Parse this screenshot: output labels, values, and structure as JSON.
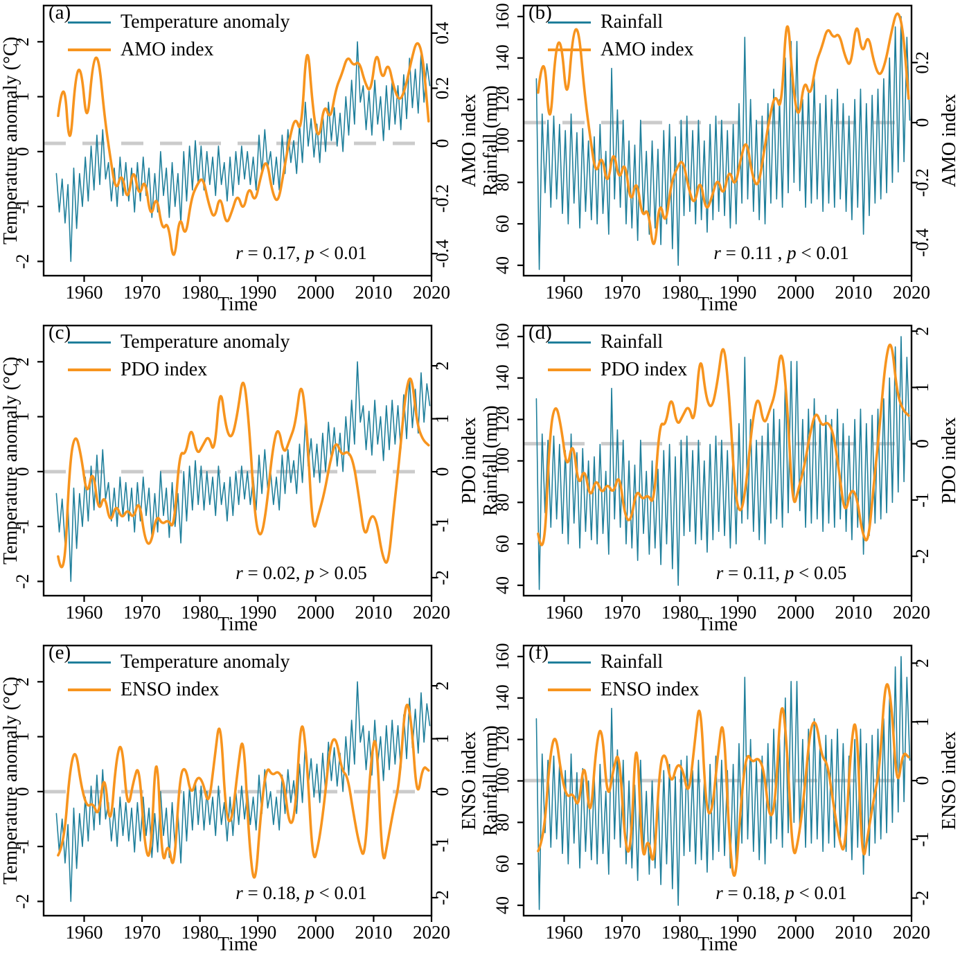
{
  "colors": {
    "blue": "#1F7F9B",
    "orange": "#F7941E",
    "dash_gray": "#CBCBCB",
    "frame": "#000000"
  },
  "series_data": {
    "temperature_anomaly": {
      "unit": "°C",
      "start_year": 1955,
      "resolution": "annual high/low envelope of monthly series",
      "annual_hi": [
        -0.4,
        -0.5,
        -0.6,
        -0.3,
        -0.4,
        -0.1,
        0.1,
        0.3,
        0.4,
        -0.2,
        -0.3,
        -0.1,
        -0.2,
        -0.3,
        -0.2,
        -0.1,
        -0.3,
        -0.4,
        0.0,
        -0.3,
        -0.2,
        -0.4,
        0.0,
        0.1,
        0.2,
        0.1,
        0.0,
        -0.1,
        0.1,
        -0.2,
        -0.1,
        0.0,
        0.1,
        0.0,
        -0.1,
        0.3,
        0.4,
        0.0,
        -0.1,
        0.3,
        0.4,
        0.2,
        0.5,
        0.9,
        0.6,
        0.5,
        0.7,
        0.9,
        0.8,
        0.7,
        1.0,
        1.3,
        2.0,
        1.2,
        1.1,
        1.3,
        1.0,
        1.2,
        1.3,
        1.2,
        1.4,
        1.7,
        1.5,
        1.8,
        1.6
      ],
      "annual_lo": [
        -1.1,
        -1.3,
        -2.0,
        -1.4,
        -1.0,
        -0.9,
        -0.7,
        -0.6,
        -0.5,
        -0.9,
        -1.0,
        -0.8,
        -0.9,
        -1.1,
        -0.9,
        -0.8,
        -1.2,
        -1.1,
        -0.8,
        -1.2,
        -1.0,
        -1.3,
        -0.9,
        -0.7,
        -0.6,
        -0.7,
        -0.6,
        -0.8,
        -0.6,
        -0.9,
        -0.8,
        -0.6,
        -0.5,
        -0.6,
        -0.7,
        -0.4,
        -0.3,
        -0.6,
        -0.7,
        -0.4,
        -0.2,
        -0.4,
        -0.2,
        0.1,
        -0.1,
        -0.2,
        0.0,
        0.2,
        0.1,
        0.0,
        0.3,
        0.5,
        0.9,
        0.4,
        0.3,
        0.5,
        0.2,
        0.4,
        0.5,
        0.4,
        0.6,
        0.8,
        0.7,
        0.9,
        1.2
      ]
    },
    "rainfall": {
      "unit": "mm",
      "start_year": 1955,
      "resolution": "annual high/low envelope of monthly series",
      "annual_hi": [
        130,
        113,
        110,
        112,
        108,
        105,
        113,
        104,
        106,
        100,
        102,
        108,
        95,
        135,
        115,
        110,
        100,
        98,
        110,
        95,
        100,
        96,
        105,
        108,
        102,
        110,
        112,
        105,
        110,
        100,
        108,
        112,
        110,
        105,
        108,
        118,
        150,
        120,
        110,
        112,
        118,
        125,
        120,
        140,
        148,
        148,
        120,
        125,
        130,
        118,
        122,
        120,
        125,
        118,
        112,
        120,
        125,
        118,
        122,
        125,
        130,
        140,
        155,
        160,
        150
      ],
      "annual_lo": [
        38,
        75,
        68,
        72,
        65,
        60,
        70,
        58,
        66,
        62,
        60,
        65,
        55,
        72,
        68,
        60,
        58,
        52,
        65,
        55,
        58,
        50,
        60,
        48,
        40,
        64,
        66,
        60,
        62,
        56,
        62,
        66,
        64,
        58,
        60,
        70,
        72,
        66,
        62,
        60,
        70,
        72,
        68,
        75,
        80,
        76,
        68,
        70,
        72,
        66,
        70,
        68,
        72,
        66,
        62,
        68,
        55,
        64,
        70,
        72,
        75,
        80,
        85,
        90,
        110
      ]
    },
    "amo": {
      "start_year": 1955,
      "resolution": "annual",
      "annual": [
        0.1,
        0.27,
        -0.05,
        0.25,
        0.28,
        0.05,
        0.3,
        0.32,
        0.1,
        -0.05,
        -0.18,
        -0.1,
        -0.22,
        -0.08,
        -0.2,
        -0.12,
        -0.28,
        -0.18,
        -0.32,
        -0.28,
        -0.45,
        -0.25,
        -0.35,
        -0.2,
        -0.15,
        -0.12,
        -0.22,
        -0.28,
        -0.18,
        -0.3,
        -0.25,
        -0.18,
        -0.25,
        -0.15,
        -0.22,
        -0.12,
        -0.05,
        -0.18,
        -0.22,
        -0.1,
        0.02,
        0.1,
        0.03,
        0.4,
        0.12,
        0.0,
        0.15,
        0.08,
        0.2,
        0.25,
        0.32,
        0.28,
        0.3,
        0.22,
        0.18,
        0.35,
        0.22,
        0.3,
        0.2,
        0.15,
        0.2,
        0.3,
        0.38,
        0.32,
        0.08
      ]
    },
    "pdo": {
      "start_year": 1955,
      "resolution": "annual",
      "annual": [
        -1.6,
        -2.2,
        0.2,
        0.75,
        0.3,
        -0.5,
        0.1,
        -0.8,
        -0.4,
        -1.0,
        -0.6,
        -0.9,
        -0.7,
        -0.9,
        -0.5,
        -1.3,
        -1.4,
        -0.8,
        -1.0,
        -0.9,
        -1.1,
        0.4,
        0.3,
        0.9,
        0.3,
        0.5,
        0.7,
        0.3,
        1.7,
        0.8,
        0.6,
        1.1,
        1.9,
        0.9,
        -0.9,
        -1.3,
        -0.7,
        0.4,
        0.9,
        0.3,
        0.6,
        0.9,
        1.8,
        0.8,
        -1.2,
        -0.8,
        -0.4,
        0.2,
        0.6,
        0.3,
        0.4,
        0.2,
        -0.5,
        -1.3,
        -0.8,
        -0.9,
        -1.6,
        -1.8,
        -0.7,
        0.3,
        1.5,
        1.9,
        0.9,
        0.6,
        0.5
      ]
    },
    "enso": {
      "start_year": 1955,
      "resolution": "annual",
      "annual": [
        -1.2,
        -1.0,
        0.4,
        0.85,
        0.1,
        -0.3,
        -0.2,
        -0.5,
        0.45,
        -0.8,
        0.6,
        1.0,
        -0.4,
        0.2,
        0.55,
        -1.1,
        -1.3,
        1.1,
        -1.5,
        -0.9,
        -1.6,
        0.3,
        0.5,
        -0.1,
        0.3,
        0.2,
        -0.3,
        0.6,
        1.5,
        -0.5,
        -0.6,
        0.4,
        1.2,
        -1.0,
        -1.9,
        -0.4,
        0.5,
        0.3,
        0.4,
        0.2,
        -0.7,
        -0.4,
        1.55,
        0.6,
        -1.4,
        -1.0,
        -0.2,
        0.9,
        1.05,
        0.4,
        0.3,
        -0.4,
        -1.0,
        -1.3,
        0.6,
        1.2,
        -1.5,
        -0.9,
        -0.3,
        0.2,
        1.8,
        1.4,
        -0.2,
        0.5,
        0.4
      ]
    }
  },
  "chart_data": [
    {
      "id": "a",
      "type": "line",
      "letter": "(a)",
      "legend": [
        {
          "label": "Temperature anomaly"
        },
        {
          "label": "AMO index"
        }
      ],
      "left_axis": {
        "label": "Temperature anomaly (°C)",
        "ticks": [
          2,
          1,
          0,
          -1,
          -2
        ],
        "range": [
          -2.26,
          2.66
        ]
      },
      "right_axis": {
        "label": "AMO index",
        "ticks": [
          0.4,
          0.2,
          0,
          -0.2,
          -0.4
        ],
        "range": [
          -0.48,
          0.5
        ]
      },
      "x_axis": {
        "label": "Time",
        "ticks": [
          1960,
          1970,
          1980,
          1990,
          2000,
          2010,
          2020
        ],
        "range": [
          1953,
          2020
        ]
      },
      "dashed_reference": {
        "axis": "right",
        "value": 0
      },
      "annotation": {
        "parts": [
          "r",
          " = 0.17, ",
          "p",
          " < 0.01"
        ]
      },
      "series": [
        {
          "name": "Temperature anomaly",
          "data_ref": "temperature_anomaly",
          "axis": "left",
          "style": "thin"
        },
        {
          "name": "AMO index",
          "data_ref": "amo",
          "axis": "right",
          "style": "thick"
        }
      ]
    },
    {
      "id": "b",
      "type": "line",
      "letter": "(b)",
      "legend": [
        {
          "label": "Rainfall"
        },
        {
          "label": "AMO index"
        }
      ],
      "left_axis": {
        "label": "Rainfall (mm)",
        "ticks": [
          160,
          140,
          120,
          100,
          80,
          60,
          40
        ],
        "range": [
          35,
          165.3
        ]
      },
      "right_axis": {
        "label": "AMO index",
        "ticks": [
          0.2,
          0,
          -0.2,
          -0.4
        ],
        "range": [
          -0.51,
          0.39
        ]
      },
      "x_axis": {
        "label": "Time",
        "ticks": [
          1960,
          1970,
          1980,
          1990,
          2000,
          2010,
          2020
        ],
        "range": [
          1953,
          2020
        ]
      },
      "dashed_reference": {
        "axis": "right",
        "value": 0
      },
      "annotation": {
        "parts": [
          "r",
          " = 0.11 , ",
          "p",
          " < 0.01"
        ]
      },
      "series": [
        {
          "name": "Rainfall",
          "data_ref": "rainfall",
          "axis": "left",
          "style": "thin"
        },
        {
          "name": "AMO index",
          "data_ref": "amo",
          "axis": "right",
          "style": "thick"
        }
      ]
    },
    {
      "id": "c",
      "type": "line",
      "letter": "(c)",
      "legend": [
        {
          "label": "Temperature anomaly"
        },
        {
          "label": "PDO index"
        }
      ],
      "left_axis": {
        "label": "Temperature anomaly (°C)",
        "ticks": [
          2,
          1,
          0,
          -1,
          -2
        ],
        "range": [
          -2.26,
          2.66
        ]
      },
      "right_axis": {
        "label": "PDO index",
        "ticks": [
          2,
          1,
          0,
          -1,
          -2
        ],
        "range": [
          -2.34,
          2.76
        ]
      },
      "x_axis": {
        "label": "Time",
        "ticks": [
          1960,
          1970,
          1980,
          1990,
          2000,
          2010,
          2020
        ],
        "range": [
          1953,
          2020
        ]
      },
      "dashed_reference": {
        "axis": "right",
        "value": 0
      },
      "annotation": {
        "parts": [
          "r",
          "  = 0.02, ",
          "p",
          " > 0.05"
        ]
      },
      "series": [
        {
          "name": "Temperature anomaly",
          "data_ref": "temperature_anomaly",
          "axis": "left",
          "style": "thin"
        },
        {
          "name": "PDO index",
          "data_ref": "pdo",
          "axis": "right",
          "style": "thick"
        }
      ]
    },
    {
      "id": "d",
      "type": "line",
      "letter": "(d)",
      "legend": [
        {
          "label": "Rainfall"
        },
        {
          "label": "PDO index"
        }
      ],
      "left_axis": {
        "label": "Rainfall (mm)",
        "ticks": [
          160,
          140,
          120,
          100,
          80,
          60,
          40
        ],
        "range": [
          35,
          165.3
        ]
      },
      "right_axis": {
        "label": "PDO index",
        "ticks": [
          2,
          1,
          0,
          -1,
          -2
        ],
        "range": [
          -2.7,
          2.1
        ]
      },
      "x_axis": {
        "label": "Time",
        "ticks": [
          1960,
          1970,
          1980,
          1990,
          2000,
          2010,
          2020
        ],
        "range": [
          1953,
          2020
        ]
      },
      "dashed_reference": {
        "axis": "right",
        "value": 0
      },
      "annotation": {
        "parts": [
          "r",
          "  = 0.11, ",
          "p",
          " < 0.05"
        ]
      },
      "series": [
        {
          "name": "Rainfall",
          "data_ref": "rainfall",
          "axis": "left",
          "style": "thin"
        },
        {
          "name": "PDO index",
          "data_ref": "pdo",
          "axis": "right",
          "style": "thick"
        }
      ]
    },
    {
      "id": "e",
      "type": "line",
      "letter": "(e)",
      "legend": [
        {
          "label": "Temperature anomaly"
        },
        {
          "label": "ENSO index"
        }
      ],
      "left_axis": {
        "label": "Temperature anomaly (°C)",
        "ticks": [
          2,
          1,
          0,
          -1,
          -2
        ],
        "range": [
          -2.26,
          2.66
        ]
      },
      "right_axis": {
        "label": "ENSO index",
        "ticks": [
          2,
          1,
          0,
          -1,
          -2
        ],
        "range": [
          -2.34,
          2.76
        ]
      },
      "x_axis": {
        "label": "Time",
        "ticks": [
          1960,
          1970,
          1980,
          1990,
          2000,
          2010,
          2020
        ],
        "range": [
          1953,
          2020
        ]
      },
      "dashed_reference": {
        "axis": "right",
        "value": 0
      },
      "annotation": {
        "parts": [
          "r",
          " = 0.18, ",
          "p",
          " < 0.01"
        ]
      },
      "series": [
        {
          "name": "Temperature anomaly",
          "data_ref": "temperature_anomaly",
          "axis": "left",
          "style": "thin"
        },
        {
          "name": "ENSO index",
          "data_ref": "enso",
          "axis": "right",
          "style": "thick"
        }
      ]
    },
    {
      "id": "f",
      "type": "line",
      "letter": "(f)",
      "legend": [
        {
          "label": "Rainfall"
        },
        {
          "label": "ENSO index"
        }
      ],
      "left_axis": {
        "label": "Rainfall (mm)",
        "ticks": [
          160,
          140,
          120,
          100,
          80,
          60,
          40
        ],
        "range": [
          35,
          165.3
        ]
      },
      "right_axis": {
        "label": "ENSO index",
        "ticks": [
          2,
          1,
          0,
          -1,
          -2
        ],
        "range": [
          -2.3,
          2.3
        ]
      },
      "x_axis": {
        "label": "Time",
        "ticks": [
          1960,
          1970,
          1980,
          1990,
          2000,
          2010,
          2020
        ],
        "range": [
          1953,
          2020
        ]
      },
      "dashed_reference": {
        "axis": "right",
        "value": 0
      },
      "annotation": {
        "parts": [
          "r",
          "  = 0.18, ",
          "p",
          " < 0.01"
        ]
      },
      "series": [
        {
          "name": "Rainfall",
          "data_ref": "rainfall",
          "axis": "left",
          "style": "thin"
        },
        {
          "name": "ENSO index",
          "data_ref": "enso",
          "axis": "right",
          "style": "thick"
        }
      ]
    }
  ]
}
